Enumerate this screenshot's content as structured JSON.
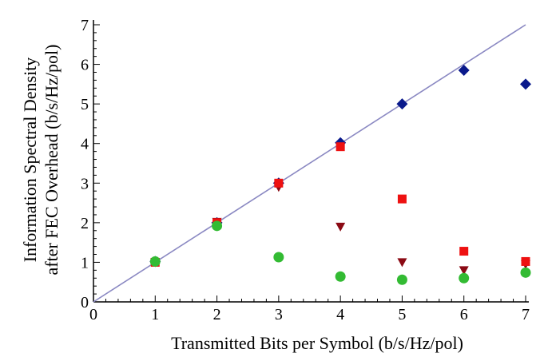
{
  "chart_data": {
    "type": "scatter",
    "xlabel": "Transmitted Bits per Symbol (b/s/Hz/pol)",
    "ylabel_line1": "Information Spectral Density",
    "ylabel_line2": "after FEC Overhead (b/s/Hz/pol)",
    "xlim": [
      0,
      7
    ],
    "ylim": [
      0,
      7
    ],
    "x_ticks": [
      "0",
      "1",
      "2",
      "3",
      "4",
      "5",
      "6",
      "7"
    ],
    "y_ticks": [
      "0",
      "1",
      "2",
      "3",
      "4",
      "5",
      "6",
      "7"
    ],
    "grid": false,
    "reference_line": {
      "x": [
        0,
        7
      ],
      "y": [
        0,
        7
      ],
      "color": "#8a88c2"
    },
    "series": [
      {
        "marker": "diamond",
        "color": "#0a1a8c",
        "x": [
          1,
          2,
          3,
          4,
          5,
          6,
          7
        ],
        "y": [
          1.02,
          2.0,
          3.0,
          4.02,
          5.0,
          5.85,
          5.5
        ]
      },
      {
        "marker": "triangle-down",
        "color": "#8b0a14",
        "x": [
          1,
          2,
          3,
          4,
          5,
          6,
          7
        ],
        "y": [
          1.0,
          2.02,
          2.9,
          1.9,
          1.0,
          0.8,
          0.95
        ]
      },
      {
        "marker": "square",
        "color": "#ee1111",
        "x": [
          1,
          2,
          3,
          4,
          5,
          6,
          7
        ],
        "y": [
          1.0,
          2.0,
          3.0,
          3.92,
          2.6,
          1.28,
          1.02
        ]
      },
      {
        "marker": "circle",
        "color": "#33bb33",
        "x": [
          1,
          2,
          3,
          4,
          5,
          6,
          7
        ],
        "y": [
          1.02,
          1.92,
          1.13,
          0.64,
          0.56,
          0.6,
          0.74
        ]
      }
    ]
  }
}
